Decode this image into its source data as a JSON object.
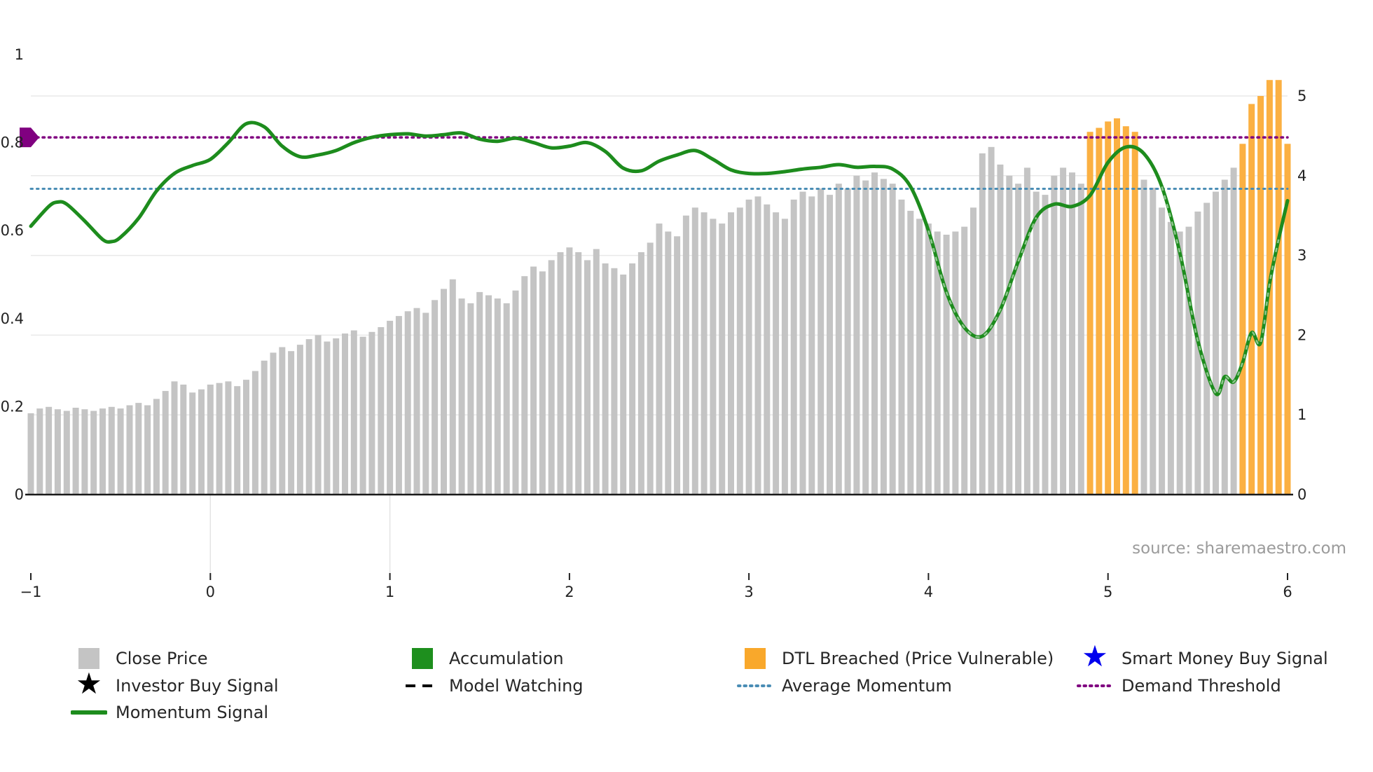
{
  "chart_data": {
    "type": "bar+line",
    "source_text": "source: sharemaestro.com",
    "x_axis": {
      "min": -1,
      "max": 6,
      "values": [
        -1,
        0,
        1,
        2,
        3,
        4,
        5,
        6
      ],
      "labels": [
        "−1",
        "0",
        "1",
        "2",
        "3",
        "4",
        "5",
        "6"
      ]
    },
    "left_y_axis": {
      "min": 0,
      "max": 1,
      "values": [
        0,
        0.2,
        0.4,
        0.6,
        0.8,
        1
      ],
      "labels": [
        "0",
        "0.2",
        "0.4",
        "0.6",
        "0.8",
        "1"
      ]
    },
    "right_y_axis": {
      "min": 0,
      "max": 5.45,
      "values": [
        0,
        1,
        2,
        3,
        4,
        5
      ],
      "labels": [
        "0",
        "1",
        "2",
        "3",
        "4",
        "5"
      ]
    },
    "average_momentum": 0.695,
    "demand_threshold": 0.812,
    "bars": {
      "x_start": -1,
      "x_step": 0.05,
      "values": [
        1.02,
        1.08,
        1.1,
        1.07,
        1.05,
        1.09,
        1.07,
        1.05,
        1.08,
        1.1,
        1.08,
        1.12,
        1.15,
        1.12,
        1.2,
        1.3,
        1.42,
        1.38,
        1.28,
        1.32,
        1.38,
        1.4,
        1.42,
        1.36,
        1.44,
        1.55,
        1.68,
        1.78,
        1.85,
        1.8,
        1.88,
        1.95,
        2.0,
        1.92,
        1.96,
        2.02,
        2.06,
        1.98,
        2.04,
        2.1,
        2.18,
        2.24,
        2.3,
        2.34,
        2.28,
        2.44,
        2.58,
        2.7,
        2.46,
        2.4,
        2.54,
        2.5,
        2.46,
        2.4,
        2.56,
        2.74,
        2.86,
        2.8,
        2.94,
        3.04,
        3.1,
        3.04,
        2.94,
        3.08,
        2.9,
        2.84,
        2.76,
        2.9,
        3.04,
        3.16,
        3.4,
        3.3,
        3.24,
        3.5,
        3.6,
        3.54,
        3.46,
        3.4,
        3.54,
        3.6,
        3.7,
        3.74,
        3.64,
        3.54,
        3.46,
        3.7,
        3.8,
        3.74,
        3.84,
        3.76,
        3.9,
        3.84,
        4.0,
        3.94,
        4.04,
        3.96,
        3.9,
        3.7,
        3.56,
        3.46,
        3.4,
        3.3,
        3.26,
        3.3,
        3.36,
        3.6,
        4.28,
        4.36,
        4.14,
        4.0,
        3.9,
        4.1,
        3.8,
        3.76,
        4.0,
        4.1,
        4.04,
        3.9,
        4.55,
        4.6,
        4.68,
        4.72,
        4.62,
        4.55,
        3.95,
        3.85,
        3.6,
        3.42,
        3.3,
        3.36,
        3.55,
        3.66,
        3.8,
        3.95,
        4.1,
        4.4,
        4.9,
        5.0,
        5.2,
        5.2,
        4.4
      ],
      "dtl_breached_ranges": [
        [
          118,
          123
        ],
        [
          135,
          140
        ]
      ]
    },
    "momentum": {
      "points": [
        [
          -1.0,
          0.61
        ],
        [
          -0.9,
          0.655
        ],
        [
          -0.85,
          0.665
        ],
        [
          -0.8,
          0.66
        ],
        [
          -0.7,
          0.622
        ],
        [
          -0.6,
          0.58
        ],
        [
          -0.55,
          0.575
        ],
        [
          -0.5,
          0.585
        ],
        [
          -0.4,
          0.628
        ],
        [
          -0.3,
          0.69
        ],
        [
          -0.2,
          0.73
        ],
        [
          -0.1,
          0.748
        ],
        [
          0.0,
          0.762
        ],
        [
          0.1,
          0.8
        ],
        [
          0.2,
          0.843
        ],
        [
          0.3,
          0.836
        ],
        [
          0.4,
          0.792
        ],
        [
          0.5,
          0.768
        ],
        [
          0.6,
          0.772
        ],
        [
          0.7,
          0.782
        ],
        [
          0.8,
          0.8
        ],
        [
          0.9,
          0.812
        ],
        [
          1.0,
          0.818
        ],
        [
          1.1,
          0.82
        ],
        [
          1.2,
          0.815
        ],
        [
          1.3,
          0.818
        ],
        [
          1.4,
          0.822
        ],
        [
          1.5,
          0.808
        ],
        [
          1.6,
          0.803
        ],
        [
          1.7,
          0.81
        ],
        [
          1.8,
          0.8
        ],
        [
          1.9,
          0.788
        ],
        [
          2.0,
          0.792
        ],
        [
          2.1,
          0.8
        ],
        [
          2.2,
          0.78
        ],
        [
          2.3,
          0.742
        ],
        [
          2.4,
          0.736
        ],
        [
          2.5,
          0.758
        ],
        [
          2.6,
          0.772
        ],
        [
          2.7,
          0.782
        ],
        [
          2.8,
          0.762
        ],
        [
          2.9,
          0.738
        ],
        [
          3.0,
          0.73
        ],
        [
          3.1,
          0.73
        ],
        [
          3.2,
          0.734
        ],
        [
          3.3,
          0.74
        ],
        [
          3.4,
          0.744
        ],
        [
          3.5,
          0.75
        ],
        [
          3.6,
          0.744
        ],
        [
          3.7,
          0.746
        ],
        [
          3.8,
          0.74
        ],
        [
          3.9,
          0.7
        ],
        [
          4.0,
          0.6
        ],
        [
          4.1,
          0.46
        ],
        [
          4.2,
          0.38
        ],
        [
          4.3,
          0.36
        ],
        [
          4.4,
          0.42
        ],
        [
          4.5,
          0.53
        ],
        [
          4.6,
          0.63
        ],
        [
          4.7,
          0.66
        ],
        [
          4.8,
          0.655
        ],
        [
          4.9,
          0.68
        ],
        [
          5.0,
          0.755
        ],
        [
          5.1,
          0.79
        ],
        [
          5.2,
          0.775
        ],
        [
          5.3,
          0.7
        ],
        [
          5.4,
          0.55
        ],
        [
          5.5,
          0.35
        ],
        [
          5.6,
          0.23
        ],
        [
          5.65,
          0.268
        ],
        [
          5.7,
          0.256
        ],
        [
          5.75,
          0.3
        ],
        [
          5.8,
          0.368
        ],
        [
          5.85,
          0.345
        ],
        [
          5.9,
          0.48
        ],
        [
          5.95,
          0.58
        ],
        [
          6.0,
          0.668
        ]
      ]
    },
    "model_watching_ranges": [
      [
        3.95,
        4.65
      ],
      [
        5.25,
        5.95
      ]
    ]
  },
  "colors": {
    "bar_gray": "#c4c4c4",
    "bar_breached": "#fbb042",
    "momentum_green": "#1d8c1d",
    "average_momentum_blue": "#4a8db5",
    "demand_threshold_purple": "#800080",
    "smart_money_blue": "#0000ee",
    "star_black": "#000000",
    "legend_green": "#1e8f1e",
    "legend_orange": "#f9a82b",
    "axis_text": "#222222",
    "source_gray": "#9b9b9b"
  },
  "legend": {
    "items": [
      {
        "label": "Close Price",
        "swatch": "square",
        "color": "#c4c4c4",
        "col": 0,
        "row": 0
      },
      {
        "label": "Accumulation",
        "swatch": "square",
        "color": "#1e8f1e",
        "col": 1,
        "row": 0
      },
      {
        "label": "DTL Breached (Price Vulnerable)",
        "swatch": "square",
        "color": "#f9a82b",
        "col": 2,
        "row": 0
      },
      {
        "label": "Smart Money Buy Signal",
        "swatch": "star",
        "color": "#0000ee",
        "col": 3,
        "row": 0
      },
      {
        "label": "Investor Buy Signal",
        "swatch": "star",
        "color": "#000000",
        "col": 0,
        "row": 1
      },
      {
        "label": "Model Watching",
        "swatch": "dashed",
        "color": "#000000",
        "col": 1,
        "row": 1
      },
      {
        "label": "Average Momentum",
        "swatch": "dotted",
        "color": "#4a8db5",
        "col": 2,
        "row": 1
      },
      {
        "label": "Demand Threshold",
        "swatch": "dotted",
        "color": "#800080",
        "col": 3,
        "row": 1
      },
      {
        "label": "Momentum Signal",
        "swatch": "line",
        "color": "#1d8c1d",
        "col": 0,
        "row": 2
      }
    ]
  }
}
